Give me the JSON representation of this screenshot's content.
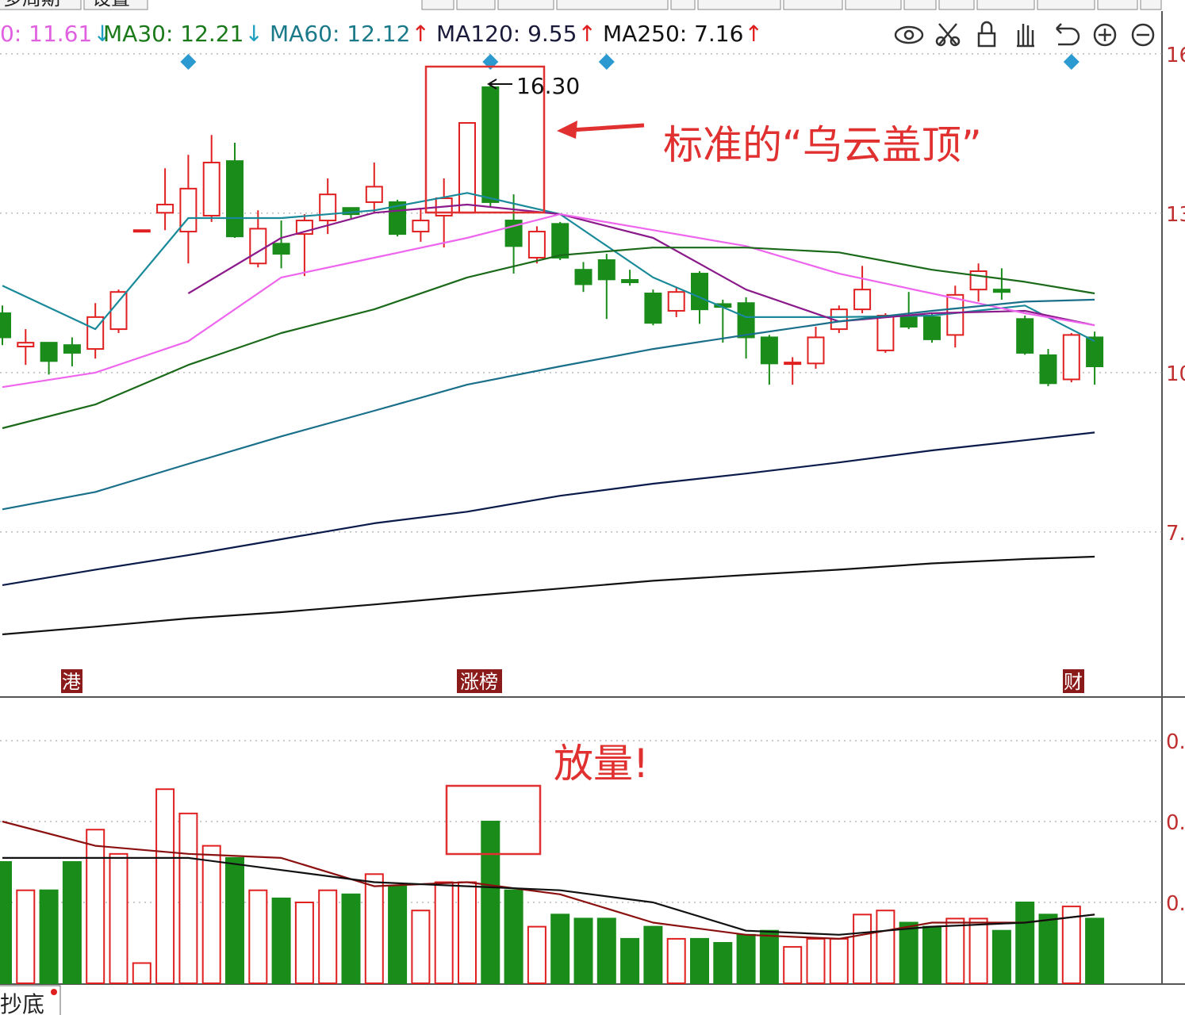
{
  "chart_data": {
    "type": "candlestick",
    "toolbar_tabs": [
      "多周期",
      "设置"
    ],
    "bottom_tab": "抄底",
    "ma_legend": [
      {
        "text": "0: 11.61",
        "arrow": "↓",
        "color": "#e060e0"
      },
      {
        "text": "MA30: 12.21",
        "arrow": "↓",
        "color": "#1a7a1a"
      },
      {
        "text": "MA60: 12.12",
        "arrow": "↑",
        "color": "#1a7a8a"
      },
      {
        "text": "MA120: 9.55",
        "arrow": "↑",
        "color": "#1a1a3a"
      },
      {
        "text": "MA250: 7.16",
        "arrow": "↑",
        "color": "#111111"
      }
    ],
    "arrow_up_color": "#e02020",
    "arrow_down_color": "#20a0c0",
    "annotations": {
      "peak": "16.30",
      "pattern": "标准的“乌云盖顶”",
      "volume": "放量!"
    },
    "badges": [
      "港",
      "涨榜",
      "财"
    ],
    "up_color": "#e02020",
    "down_color": "#1a8c1a",
    "open": [
      11.59,
      10.9,
      10.98,
      10.93,
      10.85,
      11.26,
      13.31,
      13.67,
      13.28,
      13.61,
      14.74,
      12.62,
      13.03,
      13.23,
      13.51,
      13.77,
      13.89,
      13.89,
      13.28,
      13.61,
      13.67,
      16.27,
      13.51,
      12.74,
      13.44,
      12.49,
      12.69,
      12.28,
      12.0,
      11.64,
      12.41,
      11.78,
      11.8,
      11.09,
      10.54,
      10.55,
      11.26,
      11.67,
      10.82,
      11.51,
      11.51,
      11.14,
      12.08,
      12.08,
      11.47,
      10.72,
      10.22,
      11.09
    ],
    "high": [
      11.75,
      11.26,
      10.98,
      11.09,
      11.8,
      12.08,
      13.31,
      14.59,
      14.87,
      15.28,
      15.12,
      13.72,
      13.51,
      13.64,
      14.38,
      13.77,
      14.71,
      13.94,
      13.77,
      14.38,
      15.53,
      16.3,
      14.05,
      13.39,
      13.48,
      12.65,
      12.82,
      12.49,
      12.08,
      12.13,
      12.46,
      11.87,
      11.92,
      11.14,
      10.68,
      11.31,
      11.75,
      12.57,
      11.59,
      12.03,
      11.59,
      12.16,
      12.62,
      12.52,
      11.54,
      10.85,
      11.18,
      11.21
    ],
    "low": [
      10.93,
      10.52,
      10.32,
      10.49,
      10.65,
      11.18,
      13.31,
      13.31,
      12.62,
      13.48,
      13.15,
      12.54,
      12.52,
      12.36,
      13.23,
      13.56,
      13.67,
      13.18,
      13.07,
      12.95,
      13.67,
      13.8,
      12.41,
      12.62,
      12.69,
      12.03,
      11.47,
      12.16,
      11.34,
      11.51,
      11.37,
      10.98,
      10.65,
      10.11,
      10.11,
      10.44,
      11.18,
      11.59,
      10.77,
      11.26,
      10.98,
      10.88,
      11.83,
      11.87,
      10.73,
      10.08,
      10.16,
      10.11
    ],
    "close": [
      11.09,
      10.98,
      10.6,
      10.77,
      11.51,
      12.03,
      13.31,
      13.84,
      14.17,
      14.71,
      13.18,
      13.34,
      12.82,
      13.51,
      14.05,
      13.64,
      14.21,
      13.23,
      13.51,
      13.97,
      15.53,
      13.89,
      12.98,
      13.28,
      12.74,
      12.19,
      12.29,
      12.23,
      11.39,
      12.03,
      11.67,
      11.72,
      11.09,
      10.55,
      10.57,
      11.09,
      11.67,
      12.08,
      11.54,
      11.31,
      11.05,
      11.97,
      12.46,
      12.03,
      10.77,
      10.14,
      11.14,
      10.49
    ],
    "ylim": [
      3.66,
      17.09
    ],
    "yticks": [
      {
        "value": 16.96,
        "label": "16"
      },
      {
        "value": 13.66,
        "label": "13"
      },
      {
        "value": 10.36,
        "label": "10"
      },
      {
        "value": 7.06,
        "label": "7."
      }
    ],
    "grid": true,
    "markers": [
      8,
      21,
      26,
      46
    ],
    "marker_color": "#2a9ad0",
    "ma_x": [
      0,
      4,
      8,
      12,
      16,
      20,
      24,
      28,
      32,
      36,
      40,
      44,
      47
    ],
    "ma_lines": [
      {
        "color": "#1a8a9a",
        "values": [
          12.16,
          11.26,
          13.56,
          13.56,
          13.72,
          14.08,
          13.64,
          12.33,
          11.51,
          11.51,
          11.54,
          11.75,
          11.01
        ]
      },
      {
        "color": "#8b1a8b",
        "values": [
          null,
          null,
          12.0,
          13.15,
          13.67,
          13.84,
          13.64,
          13.15,
          12.08,
          11.42,
          11.59,
          11.64,
          11.34
        ]
      },
      {
        "color": "#ee66ee",
        "values": [
          10.06,
          10.36,
          11.01,
          12.33,
          12.74,
          13.15,
          13.64,
          13.31,
          12.98,
          12.41,
          12.0,
          11.59,
          11.34
        ]
      },
      {
        "color": "#1a6a1a",
        "values": [
          9.21,
          9.7,
          10.52,
          11.18,
          11.67,
          12.33,
          12.79,
          12.95,
          12.95,
          12.85,
          12.49,
          12.24,
          12.0
        ]
      },
      {
        "color": "#1a6f8a",
        "values": [
          7.53,
          7.89,
          8.47,
          9.04,
          9.57,
          10.11,
          10.49,
          10.85,
          11.14,
          11.42,
          11.64,
          11.83,
          11.87
        ]
      },
      {
        "color": "#0a1a4a",
        "values": [
          5.96,
          6.28,
          6.58,
          6.91,
          7.24,
          7.48,
          7.81,
          8.06,
          8.27,
          8.5,
          8.75,
          8.96,
          9.12
        ]
      },
      {
        "color": "#111111",
        "values": [
          4.94,
          5.1,
          5.27,
          5.4,
          5.56,
          5.73,
          5.89,
          6.05,
          6.17,
          6.28,
          6.41,
          6.5,
          6.55
        ]
      }
    ],
    "volume": {
      "type": "bar",
      "values": [
        0.3,
        0.23,
        0.23,
        0.3,
        0.38,
        0.32,
        0.05,
        0.48,
        0.42,
        0.34,
        0.31,
        0.23,
        0.21,
        0.2,
        0.23,
        0.22,
        0.27,
        0.24,
        0.18,
        0.25,
        0.25,
        0.4,
        0.23,
        0.14,
        0.17,
        0.16,
        0.16,
        0.11,
        0.14,
        0.11,
        0.11,
        0.1,
        0.12,
        0.13,
        0.09,
        0.11,
        0.11,
        0.17,
        0.18,
        0.15,
        0.14,
        0.16,
        0.16,
        0.13,
        0.2,
        0.17,
        0.19,
        0.16
      ],
      "ylim": [
        0,
        0.706
      ],
      "yticks": [
        {
          "value": 0.6,
          "label": "0."
        },
        {
          "value": 0.4,
          "label": "0."
        },
        {
          "value": 0.2,
          "label": "0."
        }
      ],
      "ma_lines": [
        {
          "color": "#8b1010",
          "values": [
            0.4,
            0.34,
            0.32,
            0.31,
            0.24,
            0.25,
            0.22,
            0.15,
            0.12,
            0.11,
            0.15,
            0.15,
            0.17
          ]
        },
        {
          "color": "#111111",
          "values": [
            0.31,
            0.31,
            0.31,
            0.28,
            0.25,
            0.24,
            0.23,
            0.2,
            0.13,
            0.12,
            0.14,
            0.15,
            0.17
          ]
        }
      ]
    }
  }
}
